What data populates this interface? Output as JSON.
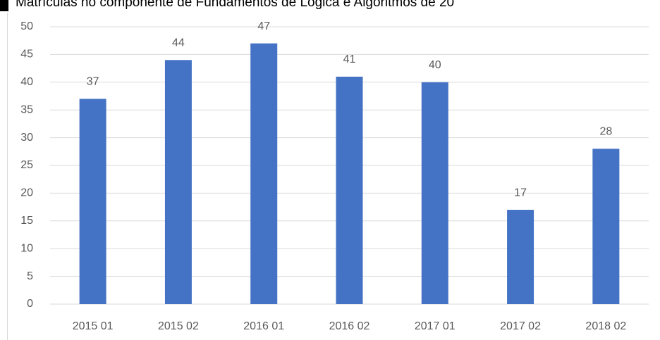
{
  "chart_data": {
    "type": "bar",
    "title": "Matrículas no componente de Fundamentos de Lógica e Algoritmos de 20",
    "categories": [
      "2015 01",
      "2015 02",
      "2016 01",
      "2016 02",
      "2017 01",
      "2017 02",
      "2018 02"
    ],
    "values": [
      37,
      44,
      47,
      41,
      40,
      17,
      28
    ],
    "color": "#4472c4",
    "ylim": [
      0,
      50
    ],
    "yticks": [
      0,
      5,
      10,
      15,
      20,
      25,
      30,
      35,
      40,
      45,
      50
    ],
    "grid": true
  }
}
